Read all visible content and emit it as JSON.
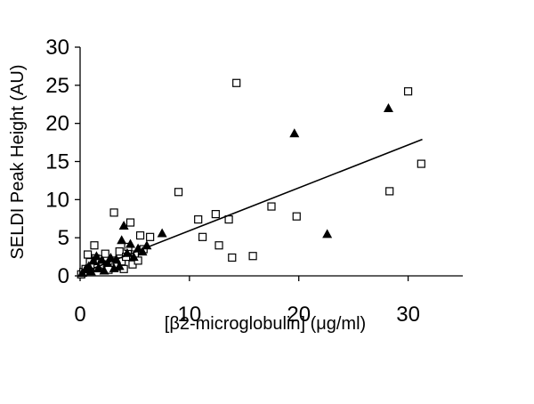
{
  "chart_data": {
    "type": "scatter",
    "title": "",
    "xlabel": "[β2-microglobulin] (μg/ml)",
    "ylabel": "SELDI Peak Height (AU)",
    "xlim": [
      0,
      35
    ],
    "ylim": [
      0,
      30
    ],
    "x_ticks": [
      0,
      10,
      20,
      30
    ],
    "y_ticks": [
      0,
      5,
      10,
      15,
      20,
      25,
      30
    ],
    "grid": false,
    "legend": "none",
    "series": [
      {
        "marker": "open-square",
        "color": "#000000",
        "points": [
          [
            0.1,
            0.2
          ],
          [
            0.3,
            0.5
          ],
          [
            0.5,
            0.9
          ],
          [
            0.7,
            2.8
          ],
          [
            0.9,
            1.8
          ],
          [
            1.1,
            1.2
          ],
          [
            1.3,
            4.0
          ],
          [
            1.4,
            2.3
          ],
          [
            1.6,
            1.0
          ],
          [
            1.8,
            2.2
          ],
          [
            2.0,
            1.5
          ],
          [
            2.3,
            2.9
          ],
          [
            2.6,
            0.8
          ],
          [
            2.9,
            2.0
          ],
          [
            3.1,
            8.3
          ],
          [
            3.4,
            1.2
          ],
          [
            3.6,
            3.2
          ],
          [
            3.8,
            1.9
          ],
          [
            4.0,
            0.9
          ],
          [
            4.2,
            2.5
          ],
          [
            4.4,
            3.8
          ],
          [
            4.6,
            7.0
          ],
          [
            4.8,
            1.5
          ],
          [
            5.0,
            2.8
          ],
          [
            5.3,
            2.0
          ],
          [
            5.5,
            5.3
          ],
          [
            5.8,
            3.5
          ],
          [
            6.4,
            5.1
          ],
          [
            9.0,
            11.0
          ],
          [
            10.8,
            7.4
          ],
          [
            11.2,
            5.1
          ],
          [
            12.4,
            8.1
          ],
          [
            12.7,
            4.0
          ],
          [
            13.6,
            7.4
          ],
          [
            13.9,
            2.4
          ],
          [
            14.3,
            25.3
          ],
          [
            15.8,
            2.6
          ],
          [
            17.5,
            9.1
          ],
          [
            19.8,
            7.8
          ],
          [
            28.3,
            11.1
          ],
          [
            30.0,
            24.2
          ],
          [
            31.2,
            14.7
          ]
        ]
      },
      {
        "marker": "filled-triangle",
        "color": "#000000",
        "points": [
          [
            0.2,
            0.4
          ],
          [
            0.5,
            0.9
          ],
          [
            0.8,
            1.3
          ],
          [
            1.0,
            0.6
          ],
          [
            1.2,
            2.0
          ],
          [
            1.5,
            2.6
          ],
          [
            1.7,
            1.1
          ],
          [
            2.0,
            2.1
          ],
          [
            2.2,
            0.7
          ],
          [
            2.5,
            1.7
          ],
          [
            2.8,
            2.4
          ],
          [
            3.1,
            1.0
          ],
          [
            3.3,
            2.2
          ],
          [
            3.6,
            1.3
          ],
          [
            3.8,
            4.7
          ],
          [
            4.0,
            6.6
          ],
          [
            4.3,
            3.0
          ],
          [
            4.6,
            4.2
          ],
          [
            4.9,
            2.5
          ],
          [
            5.3,
            3.6
          ],
          [
            5.7,
            3.2
          ],
          [
            6.1,
            4.0
          ],
          [
            7.5,
            5.6
          ],
          [
            19.6,
            18.7
          ],
          [
            22.6,
            5.5
          ],
          [
            28.2,
            22.0
          ]
        ]
      }
    ],
    "trendline": {
      "type": "linear",
      "x_range": [
        0,
        31.3
      ],
      "y_start": 0.3,
      "y_end": 17.9
    }
  }
}
